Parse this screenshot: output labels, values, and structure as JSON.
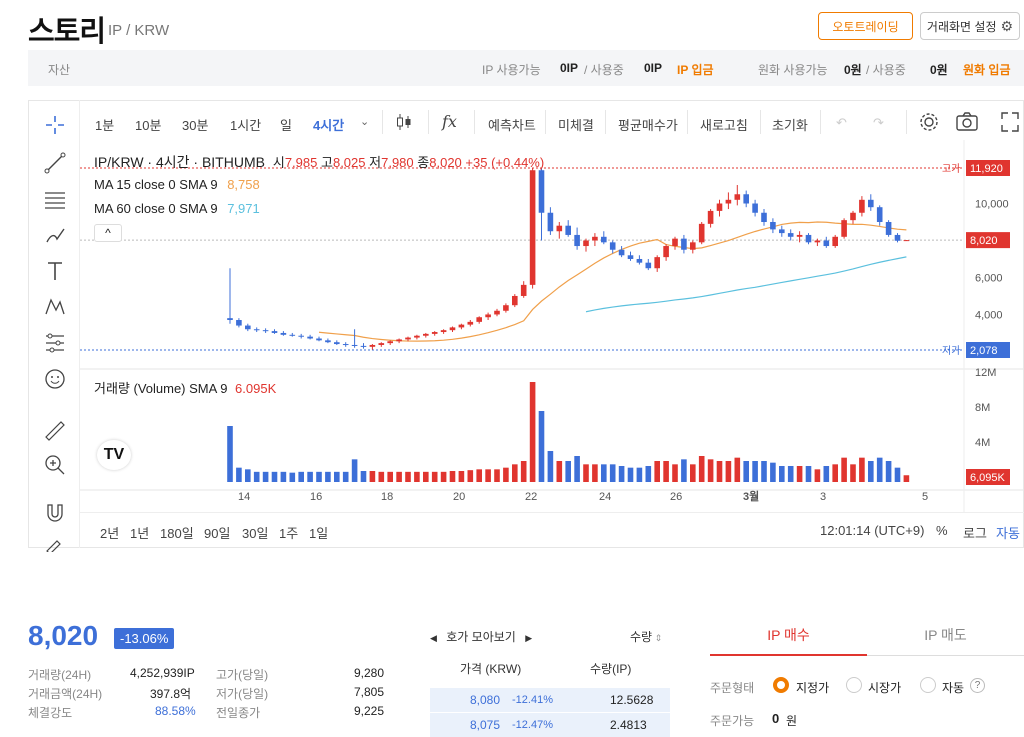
{
  "header": {
    "title": "스토리",
    "pair": "IP / KRW",
    "auto_trading_button": "오토트레이딩",
    "chart_settings_button": "거래화면 설정"
  },
  "asset_bar": {
    "label": "자산",
    "ip_available_label": "IP 사용가능",
    "ip_available_value": "0IP",
    "ip_in_use_label": "/ 사용중",
    "ip_in_use_value": "0IP",
    "ip_deposit_link": "IP 입금",
    "krw_available_label": "원화 사용가능",
    "krw_available_value": "0원",
    "krw_in_use_label": "/ 사용중",
    "krw_in_use_value": "0원",
    "krw_deposit_link": "원화 입금"
  },
  "chart_toolbar": {
    "intervals": [
      "1분",
      "10분",
      "30분",
      "1시간",
      "일",
      "4시간"
    ],
    "active_interval": "4시간",
    "fx_label": "fx",
    "items": [
      "예측차트",
      "미체결",
      "평균매수가",
      "새로고침",
      "초기화"
    ]
  },
  "chart_legend": {
    "symbol_line": "IP/KRW · 4시간 · BITHUMB",
    "open_label": "시",
    "open": "7,985",
    "high_label": "고",
    "high": "8,025",
    "low_label": "저",
    "low": "7,980",
    "close_label": "종",
    "close": "8,020",
    "change": "+35 (+0.44%)",
    "ma15_label": "MA 15 close 0 SMA 9",
    "ma15_value": "8,758",
    "ma60_label": "MA 60 close 0 SMA 9",
    "ma60_value": "7,971",
    "volume_label": "거래량 (Volume) SMA 9",
    "volume_value": "6.095K"
  },
  "chart_axis": {
    "high_tag": "고가",
    "high_value": "11,920",
    "low_tag": "저가",
    "low_value": "2,078",
    "current_value": "8,020",
    "price_ticks": [
      "10,000",
      "6,000",
      "4,000"
    ],
    "volume_ticks": [
      "12M",
      "8M",
      "4M"
    ],
    "volume_current": "6,095K",
    "x_ticks": [
      "14",
      "16",
      "18",
      "20",
      "22",
      "24",
      "26",
      "3월",
      "3",
      "5"
    ]
  },
  "chart_data": {
    "type": "candlestick",
    "x_label": "",
    "y_label": "",
    "price_range": [
      2078,
      11920
    ],
    "candles": [
      [
        3800,
        6500,
        3500,
        3700
      ],
      [
        3700,
        3800,
        3300,
        3400
      ],
      [
        3400,
        3500,
        3100,
        3200
      ],
      [
        3200,
        3300,
        3050,
        3150
      ],
      [
        3150,
        3250,
        3000,
        3100
      ],
      [
        3100,
        3200,
        2950,
        3000
      ],
      [
        3000,
        3100,
        2850,
        2900
      ],
      [
        2900,
        3000,
        2800,
        2850
      ],
      [
        2850,
        2950,
        2700,
        2800
      ],
      [
        2800,
        2900,
        2650,
        2700
      ],
      [
        2700,
        2800,
        2550,
        2600
      ],
      [
        2600,
        2700,
        2450,
        2500
      ],
      [
        2500,
        2600,
        2350,
        2400
      ],
      [
        2400,
        2500,
        2250,
        2350
      ],
      [
        2350,
        3200,
        2200,
        2300
      ],
      [
        2300,
        2450,
        2150,
        2250
      ],
      [
        2250,
        2400,
        2100,
        2350
      ],
      [
        2350,
        2500,
        2250,
        2450
      ],
      [
        2450,
        2600,
        2350,
        2550
      ],
      [
        2550,
        2700,
        2450,
        2650
      ],
      [
        2650,
        2800,
        2550,
        2750
      ],
      [
        2750,
        2900,
        2650,
        2850
      ],
      [
        2850,
        3000,
        2750,
        2950
      ],
      [
        2950,
        3100,
        2850,
        3050
      ],
      [
        3050,
        3200,
        2950,
        3150
      ],
      [
        3150,
        3350,
        3050,
        3300
      ],
      [
        3300,
        3500,
        3200,
        3450
      ],
      [
        3450,
        3700,
        3350,
        3600
      ],
      [
        3600,
        3900,
        3500,
        3850
      ],
      [
        3850,
        4100,
        3700,
        4000
      ],
      [
        4000,
        4300,
        3900,
        4200
      ],
      [
        4200,
        4600,
        4100,
        4500
      ],
      [
        4500,
        5100,
        4400,
        5000
      ],
      [
        5000,
        5800,
        4900,
        5600
      ],
      [
        5600,
        11920,
        5400,
        11800
      ],
      [
        11800,
        11900,
        8000,
        9500
      ],
      [
        9500,
        9800,
        8300,
        8500
      ],
      [
        8500,
        9000,
        8100,
        8800
      ],
      [
        8800,
        9100,
        8200,
        8300
      ],
      [
        8300,
        8700,
        7500,
        7700
      ],
      [
        7700,
        8100,
        7400,
        8000
      ],
      [
        8000,
        8400,
        7700,
        8200
      ],
      [
        8200,
        8500,
        7800,
        7900
      ],
      [
        7900,
        8000,
        7300,
        7500
      ],
      [
        7500,
        7700,
        7100,
        7200
      ],
      [
        7200,
        7400,
        6900,
        7000
      ],
      [
        7000,
        7200,
        6700,
        6800
      ],
      [
        6800,
        7000,
        6400,
        6500
      ],
      [
        6500,
        7200,
        6300,
        7100
      ],
      [
        7100,
        7800,
        6900,
        7700
      ],
      [
        7700,
        8200,
        7500,
        8100
      ],
      [
        8100,
        8300,
        7300,
        7500
      ],
      [
        7500,
        8000,
        7300,
        7900
      ],
      [
        7900,
        9000,
        7800,
        8900
      ],
      [
        8900,
        9700,
        8700,
        9600
      ],
      [
        9600,
        10200,
        9300,
        10000
      ],
      [
        10000,
        10600,
        9700,
        10200
      ],
      [
        10200,
        11000,
        9900,
        10500
      ],
      [
        10500,
        10700,
        9800,
        10000
      ],
      [
        10000,
        10200,
        9300,
        9500
      ],
      [
        9500,
        9700,
        8800,
        9000
      ],
      [
        9000,
        9200,
        8400,
        8600
      ],
      [
        8600,
        8800,
        8200,
        8400
      ],
      [
        8400,
        8600,
        8000,
        8200
      ],
      [
        8200,
        8500,
        7900,
        8300
      ],
      [
        8300,
        8400,
        7800,
        7900
      ],
      [
        7900,
        8100,
        7700,
        8000
      ],
      [
        8000,
        8200,
        7600,
        7700
      ],
      [
        7700,
        8300,
        7600,
        8200
      ],
      [
        8200,
        9200,
        8100,
        9100
      ],
      [
        9100,
        9600,
        8900,
        9500
      ],
      [
        9500,
        10400,
        9300,
        10200
      ],
      [
        10200,
        10500,
        9600,
        9800
      ],
      [
        9800,
        9900,
        8800,
        9000
      ],
      [
        9000,
        9100,
        8200,
        8300
      ],
      [
        8300,
        8400,
        7900,
        7985
      ],
      [
        7985,
        8025,
        7980,
        8020
      ]
    ],
    "volume_max_label": "12M"
  },
  "bottom_bar": {
    "ranges": [
      "2년",
      "1년",
      "180일",
      "90일",
      "30일",
      "1주",
      "1일"
    ],
    "time": "12:01:14 (UTC+9)",
    "percent": "%",
    "log": "로그",
    "auto": "자동"
  },
  "summary": {
    "price": "8,020",
    "change_rate": "-13.06%",
    "volume_24h_label": "거래량(24H)",
    "volume_24h": "4,252,939",
    "volume_unit": "IP",
    "amount_24h_label": "거래금액(24H)",
    "amount_24h": "397.8억",
    "strength_label": "체결강도",
    "strength": "88.58%",
    "high_day_label": "고가(당일)",
    "high_day": "9,280",
    "low_day_label": "저가(당일)",
    "low_day": "7,805",
    "prev_close_label": "전일종가",
    "prev_close": "9,225"
  },
  "orderbook": {
    "title": "호가 모아보기",
    "quantity_sort": "수량",
    "col_price": "가격 (KRW)",
    "col_qty": "수량(IP)",
    "rows": [
      {
        "price": "8,080",
        "rate": "-12.41%",
        "qty": "12.5628"
      },
      {
        "price": "8,075",
        "rate": "-12.47%",
        "qty": "2.4813"
      }
    ]
  },
  "order_panel": {
    "buy_tab": "IP 매수",
    "sell_tab": "IP 매도",
    "type_label": "주문형태",
    "type_limit": "지정가",
    "type_market": "시장가",
    "type_auto": "자동",
    "help": "?",
    "available_label": "주문가능",
    "available_value": "0",
    "available_unit": "원"
  }
}
